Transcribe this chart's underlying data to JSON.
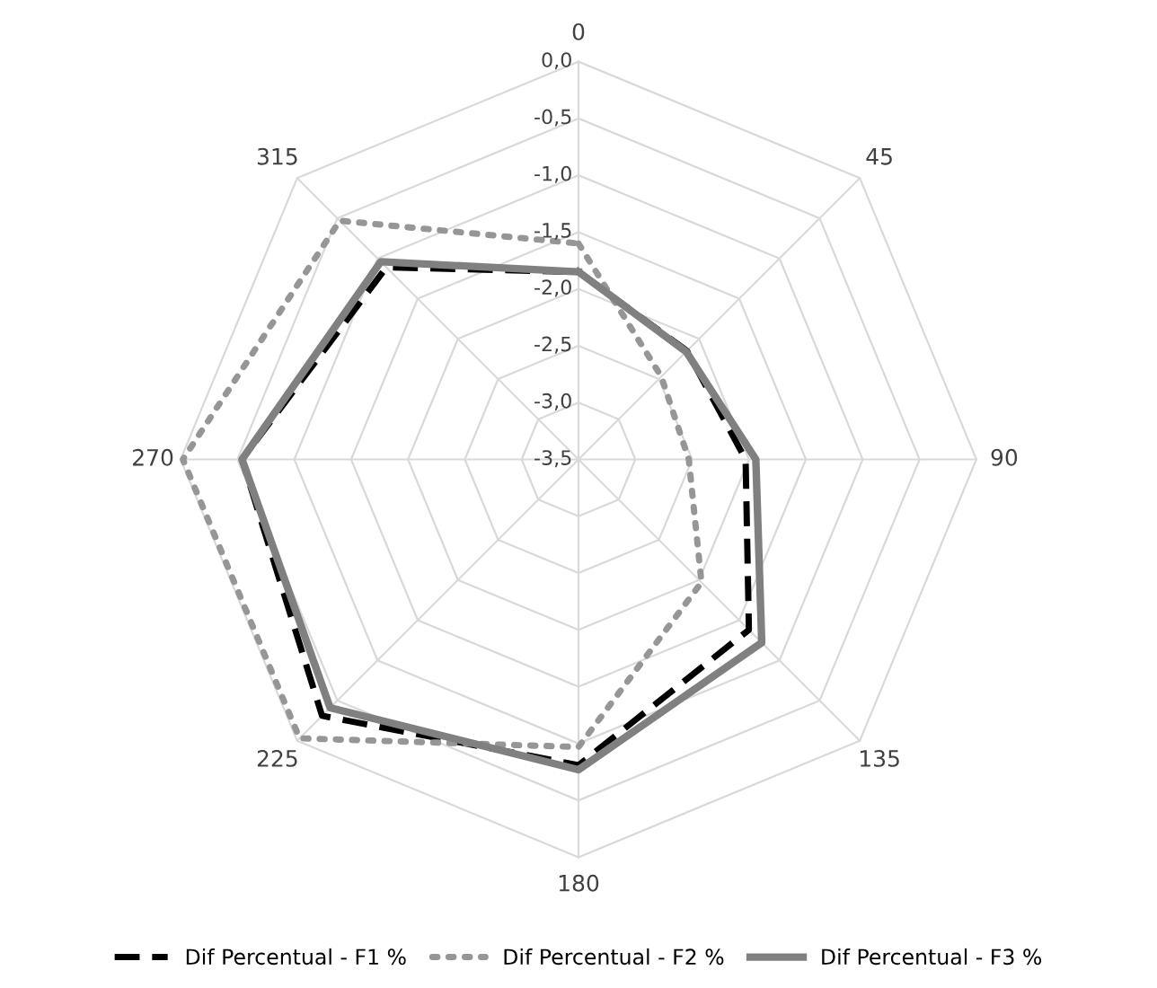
{
  "chart_data": {
    "type": "radar",
    "categories": [
      "0",
      "45",
      "90",
      "135",
      "180",
      "225",
      "270",
      "315"
    ],
    "ylim": [
      -3.5,
      0.0
    ],
    "yticks": [
      {
        "value": 0.0,
        "label": "0,0"
      },
      {
        "value": -0.5,
        "label": "-0,5"
      },
      {
        "value": -1.0,
        "label": "-1,0"
      },
      {
        "value": -1.5,
        "label": "-1,5"
      },
      {
        "value": -2.0,
        "label": "-2,0"
      },
      {
        "value": -2.5,
        "label": "-2,5"
      },
      {
        "value": -3.0,
        "label": "-3,0"
      },
      {
        "value": -3.5,
        "label": "-3,5"
      }
    ],
    "grid": true,
    "legend": "bottom",
    "series": [
      {
        "name": "Dif Percentual - F1 %",
        "color": "#000000",
        "line_style": "dashed",
        "values": [
          -1.85,
          -2.15,
          -2.03,
          -1.38,
          -0.81,
          -0.31,
          -0.54,
          -1.11
        ]
      },
      {
        "name": "Dif Percentual - F2 %",
        "color": "#969696",
        "line_style": "dotted",
        "values": [
          -1.6,
          -2.47,
          -2.53,
          -1.97,
          -0.97,
          -0.03,
          -0.02,
          -0.53
        ]
      },
      {
        "name": "Dif Percentual - F3 %",
        "color": "#808080",
        "line_style": "solid",
        "values": [
          -1.85,
          -2.16,
          -1.94,
          -1.22,
          -0.77,
          -0.41,
          -0.54,
          -1.04
        ]
      }
    ]
  }
}
